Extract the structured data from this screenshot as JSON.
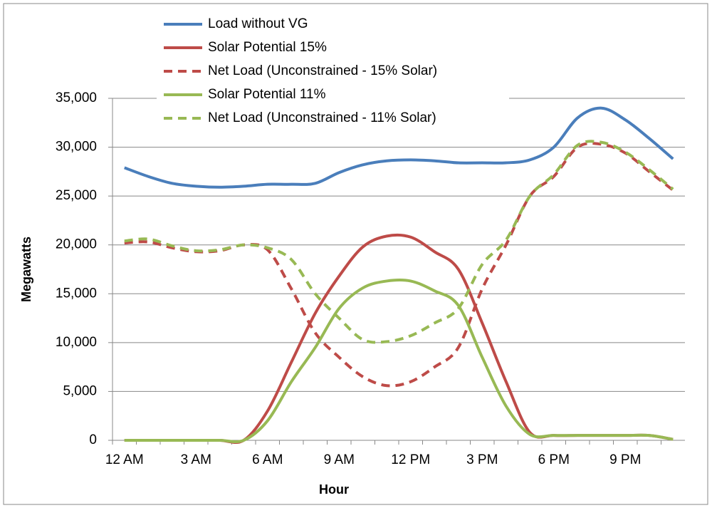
{
  "chart_data": {
    "type": "line",
    "x_label": "Hour",
    "y_label": "Megawatts",
    "categories": [
      "12 AM",
      null,
      null,
      "3 AM",
      null,
      null,
      "6 AM",
      null,
      null,
      "9 AM",
      null,
      null,
      "12 PM",
      null,
      null,
      "3 PM",
      null,
      null,
      "6 PM",
      null,
      null,
      "9 PM",
      null,
      null
    ],
    "series": [
      {
        "name": "Load without VG",
        "color": "#4a7ebb",
        "dashed": false,
        "values": [
          27900,
          27000,
          26300,
          26000,
          25900,
          26000,
          26200,
          26200,
          26300,
          27400,
          28200,
          28600,
          28700,
          28600,
          28400,
          28400,
          28400,
          28700,
          30000,
          33000,
          34000,
          32800,
          30900,
          28800
        ]
      },
      {
        "name": "Solar Potential 15%",
        "color": "#be4b48",
        "dashed": false,
        "values": [
          0,
          0,
          0,
          0,
          0,
          0,
          3000,
          8000,
          13000,
          16800,
          19800,
          20900,
          20800,
          19300,
          17500,
          12000,
          6000,
          800,
          500,
          500,
          500,
          500,
          500,
          100
        ]
      },
      {
        "name": "Net Load (Unconstrained - 15% Solar)",
        "color": "#be4b48",
        "dashed": true,
        "values": [
          20200,
          20300,
          19700,
          19300,
          19400,
          20000,
          19500,
          15500,
          11000,
          8500,
          6500,
          5600,
          6000,
          7500,
          9500,
          15500,
          20000,
          25000,
          27000,
          30000,
          30300,
          29400,
          27500,
          25600
        ]
      },
      {
        "name": "Solar Potential 11%",
        "color": "#98b954",
        "dashed": false,
        "values": [
          0,
          0,
          0,
          0,
          0,
          0,
          2000,
          6000,
          9500,
          13500,
          15600,
          16300,
          16300,
          15300,
          13800,
          8500,
          3500,
          600,
          500,
          500,
          500,
          500,
          500,
          100
        ]
      },
      {
        "name": "Net Load (Unconstrained - 11% Solar)",
        "color": "#98b954",
        "dashed": true,
        "values": [
          20400,
          20600,
          19900,
          19400,
          19500,
          20000,
          19700,
          18500,
          15000,
          12500,
          10300,
          10100,
          10700,
          12000,
          13500,
          18000,
          20500,
          25000,
          27200,
          30200,
          30500,
          29500,
          27700,
          25700
        ]
      }
    ],
    "ylim": [
      0,
      35000
    ],
    "yticks": [
      0,
      {
        "value": 5000,
        "label": "5,000"
      },
      {
        "value": 10000,
        "label": "10,000"
      },
      {
        "value": 15000,
        "label": "15,000"
      },
      {
        "value": 20000,
        "label": "20,000"
      },
      {
        "value": 25000,
        "label": "25,000"
      },
      {
        "value": 30000,
        "label": "30,000"
      },
      {
        "value": 35000,
        "label": "35,000"
      }
    ],
    "grid": true,
    "legend": "top"
  }
}
